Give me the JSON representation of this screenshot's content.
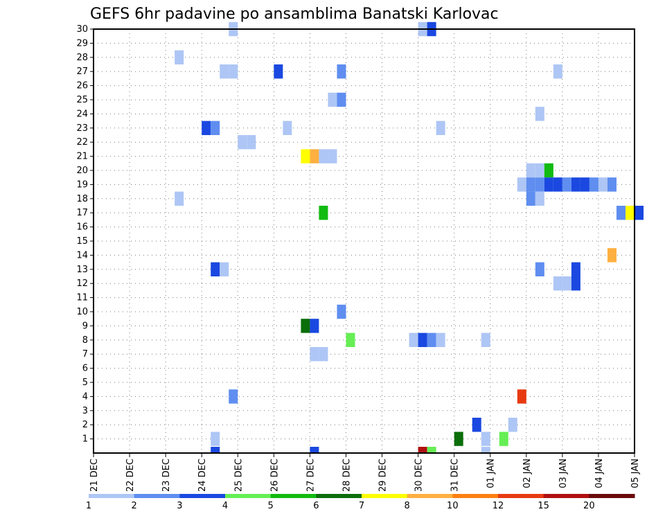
{
  "chart_data": {
    "type": "heatmap",
    "title": "GEFS 6hr padavine po ansamblima Banatski Karlovac",
    "xlabel": "",
    "ylabel": "",
    "x_tick_labels": [
      "21 DEC",
      "22 DEC",
      "23 DEC",
      "24 DEC",
      "25 DEC",
      "26 DEC",
      "27 DEC",
      "28 DEC",
      "29 DEC",
      "30 DEC",
      "31 DEC",
      "01 JAN",
      "02 JAN",
      "03 JAN",
      "04 JAN",
      "05 JAN"
    ],
    "x_unit": "days since 21 DEC 00z, 6-hourly steps",
    "y_tick_labels": [
      "1",
      "2",
      "3",
      "4",
      "5",
      "6",
      "7",
      "8",
      "9",
      "10",
      "11",
      "12",
      "13",
      "14",
      "15",
      "16",
      "17",
      "18",
      "19",
      "20",
      "21",
      "22",
      "23",
      "24",
      "25",
      "26",
      "27",
      "28",
      "29",
      "30"
    ],
    "ylim": [
      0,
      30
    ],
    "grid": true,
    "colorbar": {
      "labels": [
        "1",
        "2",
        "3",
        "4",
        "5",
        "6",
        "7",
        "8",
        "10",
        "12",
        "15",
        "20"
      ],
      "colors": [
        "#aec6f5",
        "#5f8ef0",
        "#1a48e0",
        "#66ee55",
        "#11bb11",
        "#0a6e0a",
        "#ffff00",
        "#ffb040",
        "#ff8010",
        "#e83a10",
        "#b01010",
        "#6a0a0a"
      ]
    },
    "cells": [
      {
        "day": 3.75,
        "member": 30,
        "bin": 1
      },
      {
        "day": 9.0,
        "member": 30,
        "bin": 1
      },
      {
        "day": 9.25,
        "member": 30,
        "bin": 3
      },
      {
        "day": 2.25,
        "member": 28,
        "bin": 1
      },
      {
        "day": 3.5,
        "member": 27,
        "bin": 1
      },
      {
        "day": 3.75,
        "member": 27,
        "bin": 1
      },
      {
        "day": 5.0,
        "member": 27,
        "bin": 3
      },
      {
        "day": 6.75,
        "member": 27,
        "bin": 2
      },
      {
        "day": 12.75,
        "member": 27,
        "bin": 1
      },
      {
        "day": 6.5,
        "member": 25,
        "bin": 1
      },
      {
        "day": 6.75,
        "member": 25,
        "bin": 2
      },
      {
        "day": 12.25,
        "member": 24,
        "bin": 1
      },
      {
        "day": 3.0,
        "member": 23,
        "bin": 3
      },
      {
        "day": 3.25,
        "member": 23,
        "bin": 2
      },
      {
        "day": 5.25,
        "member": 23,
        "bin": 1
      },
      {
        "day": 9.5,
        "member": 23,
        "bin": 1
      },
      {
        "day": 4.0,
        "member": 22,
        "bin": 1
      },
      {
        "day": 4.25,
        "member": 22,
        "bin": 1
      },
      {
        "day": 5.75,
        "member": 21,
        "bin": 7
      },
      {
        "day": 6.0,
        "member": 21,
        "bin": 8
      },
      {
        "day": 6.25,
        "member": 21,
        "bin": 1
      },
      {
        "day": 6.5,
        "member": 21,
        "bin": 1
      },
      {
        "day": 12.0,
        "member": 20,
        "bin": 1
      },
      {
        "day": 12.25,
        "member": 20,
        "bin": 1
      },
      {
        "day": 12.5,
        "member": 20,
        "bin": 5
      },
      {
        "day": 11.75,
        "member": 19,
        "bin": 1
      },
      {
        "day": 12.0,
        "member": 19,
        "bin": 2
      },
      {
        "day": 12.25,
        "member": 19,
        "bin": 2
      },
      {
        "day": 12.5,
        "member": 19,
        "bin": 3
      },
      {
        "day": 12.75,
        "member": 19,
        "bin": 3
      },
      {
        "day": 13.0,
        "member": 19,
        "bin": 2
      },
      {
        "day": 13.25,
        "member": 19,
        "bin": 3
      },
      {
        "day": 13.5,
        "member": 19,
        "bin": 3
      },
      {
        "day": 13.75,
        "member": 19,
        "bin": 2
      },
      {
        "day": 14.0,
        "member": 19,
        "bin": 1
      },
      {
        "day": 14.25,
        "member": 19,
        "bin": 2
      },
      {
        "day": 2.25,
        "member": 18,
        "bin": 1
      },
      {
        "day": 12.0,
        "member": 18,
        "bin": 2
      },
      {
        "day": 12.25,
        "member": 18,
        "bin": 1
      },
      {
        "day": 6.25,
        "member": 17,
        "bin": 5
      },
      {
        "day": 14.5,
        "member": 17,
        "bin": 2
      },
      {
        "day": 14.75,
        "member": 17,
        "bin": 7
      },
      {
        "day": 15.0,
        "member": 17,
        "bin": 3
      },
      {
        "day": 14.25,
        "member": 14,
        "bin": 8
      },
      {
        "day": 3.25,
        "member": 13,
        "bin": 3
      },
      {
        "day": 3.5,
        "member": 13,
        "bin": 1
      },
      {
        "day": 12.25,
        "member": 13,
        "bin": 2
      },
      {
        "day": 13.25,
        "member": 13,
        "bin": 3
      },
      {
        "day": 12.75,
        "member": 12,
        "bin": 1
      },
      {
        "day": 13.0,
        "member": 12,
        "bin": 1
      },
      {
        "day": 13.25,
        "member": 12,
        "bin": 3
      },
      {
        "day": 6.75,
        "member": 10,
        "bin": 2
      },
      {
        "day": 5.75,
        "member": 9,
        "bin": 6
      },
      {
        "day": 6.0,
        "member": 9,
        "bin": 3
      },
      {
        "day": 7.0,
        "member": 8,
        "bin": 4
      },
      {
        "day": 8.75,
        "member": 8,
        "bin": 1
      },
      {
        "day": 9.0,
        "member": 8,
        "bin": 3
      },
      {
        "day": 9.25,
        "member": 8,
        "bin": 2
      },
      {
        "day": 9.5,
        "member": 8,
        "bin": 1
      },
      {
        "day": 10.75,
        "member": 8,
        "bin": 1
      },
      {
        "day": 6.0,
        "member": 7,
        "bin": 1
      },
      {
        "day": 6.25,
        "member": 7,
        "bin": 1
      },
      {
        "day": 3.75,
        "member": 4,
        "bin": 2
      },
      {
        "day": 11.75,
        "member": 4,
        "bin": 10
      },
      {
        "day": 10.5,
        "member": 2,
        "bin": 3
      },
      {
        "day": 11.5,
        "member": 2,
        "bin": 1
      },
      {
        "day": 10.0,
        "member": 1,
        "bin": 6
      },
      {
        "day": 10.75,
        "member": 1,
        "bin": 1
      },
      {
        "day": 11.25,
        "member": 1,
        "bin": 4
      },
      {
        "day": 3.25,
        "member": 1,
        "bin": 1
      },
      {
        "day": 3.25,
        "member": 0,
        "bin": 3
      },
      {
        "day": 6.0,
        "member": 0,
        "bin": 3
      },
      {
        "day": 9.0,
        "member": 0,
        "bin": 11
      },
      {
        "day": 9.25,
        "member": 0,
        "bin": 4
      },
      {
        "day": 10.75,
        "member": 0,
        "bin": 1
      }
    ]
  }
}
